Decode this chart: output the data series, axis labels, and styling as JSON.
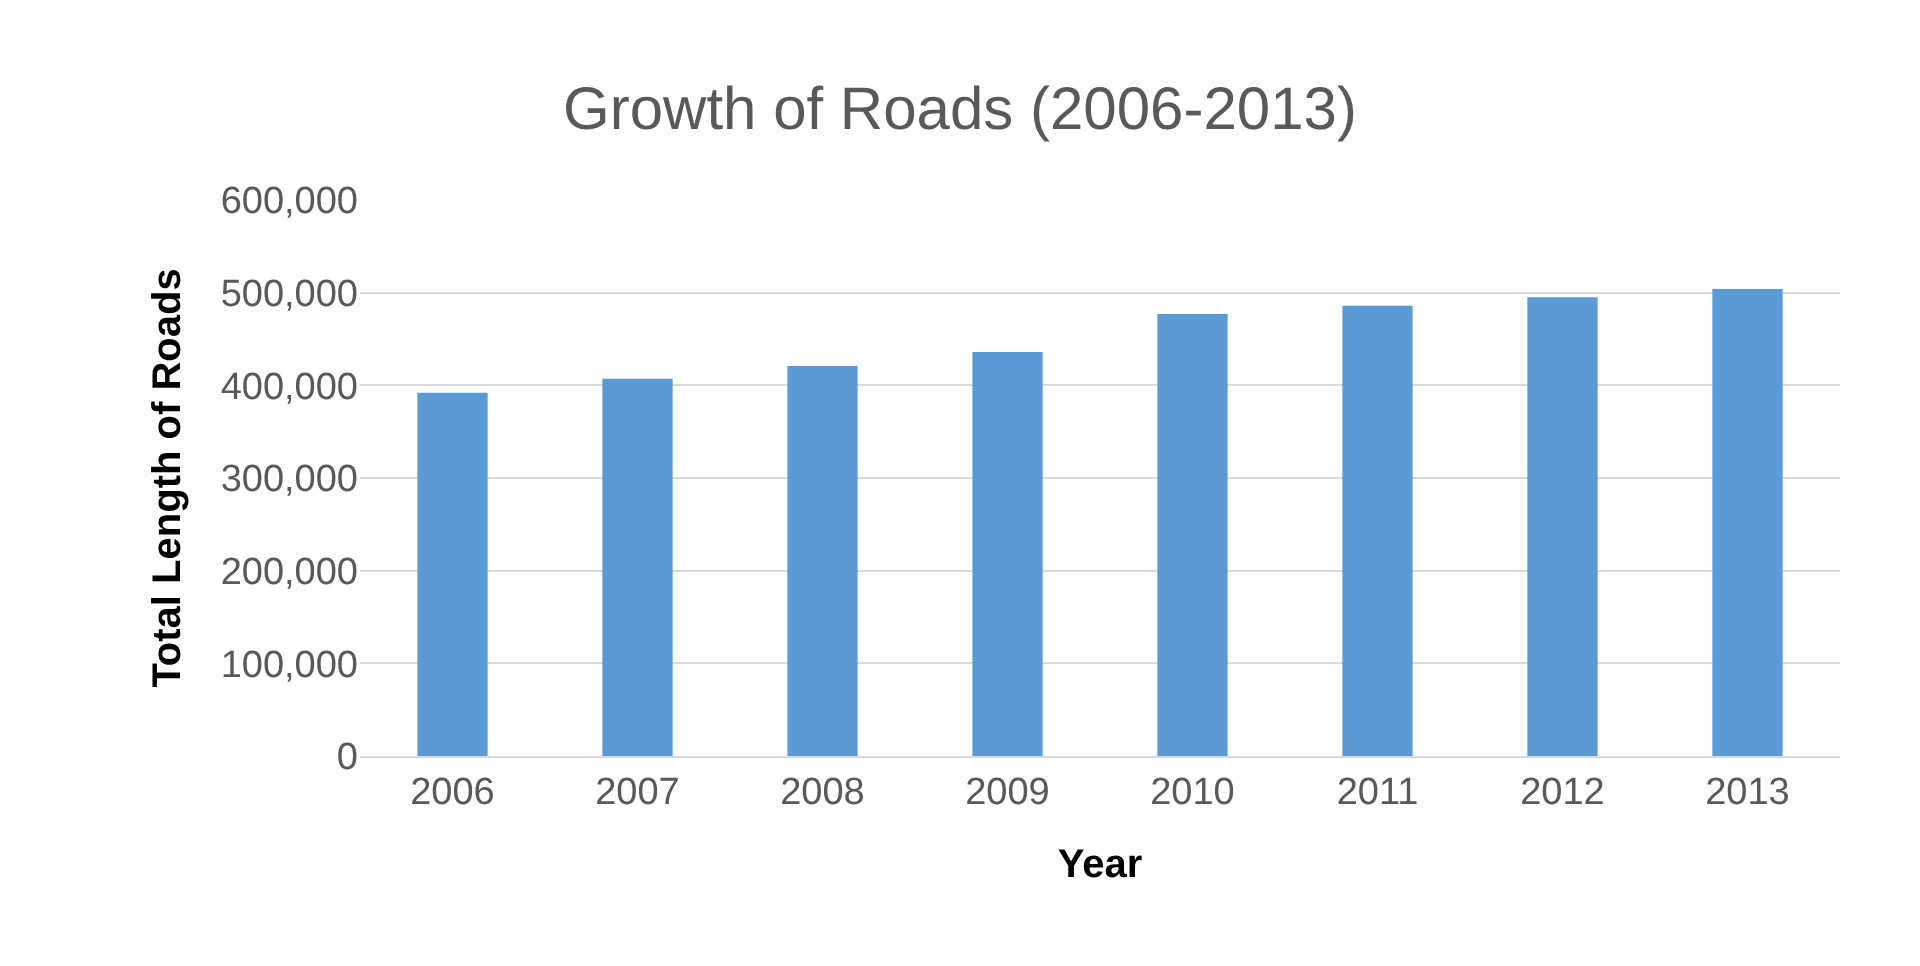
{
  "chart_data": {
    "type": "bar",
    "title": "Growth of Roads (2006-2013)",
    "xlabel": "Year",
    "ylabel": "Total Length of Roads",
    "categories": [
      "2006",
      "2007",
      "2008",
      "2009",
      "2010",
      "2011",
      "2012",
      "2013"
    ],
    "values": [
      392000,
      407000,
      421000,
      436000,
      477000,
      486000,
      495000,
      504000
    ],
    "color": "#5b9bd5",
    "ylim": [
      0,
      600000
    ],
    "yticks": [
      0,
      {
        "value": 100000,
        "label": "100,000"
      },
      {
        "value": 200000,
        "label": "200,000"
      },
      {
        "value": 300000,
        "label": "300,000"
      },
      {
        "value": 400000,
        "label": "400,000"
      },
      {
        "value": 500000,
        "label": "500,000"
      },
      {
        "value": 600000,
        "label": "600,000"
      }
    ],
    "grid": "y",
    "legend": false
  }
}
